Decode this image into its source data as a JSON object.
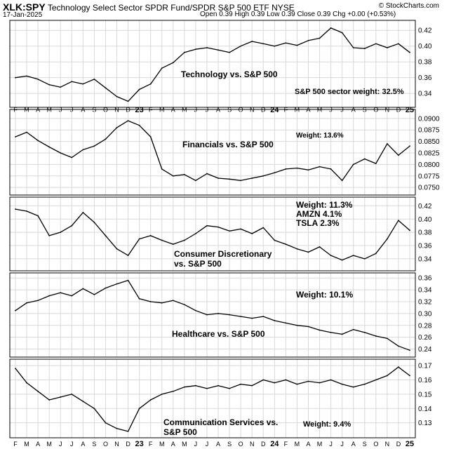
{
  "header": {
    "symbol": "XLK:SPY",
    "title": "Technology Select Sector SPDR Fund/SPDR S&P 500 ETF",
    "exchange": "NYSE",
    "date": "17-Jan-2025",
    "open_label": "Open",
    "open": "0.39",
    "high_label": "High",
    "high": "0.39",
    "low_label": "Low",
    "low": "0.39",
    "close_label": "Close",
    "close": "0.39",
    "chg_label": "Chg",
    "chg": "+0.00 (+0.53%)",
    "credit": "© StockCharts.com"
  },
  "colors": {
    "line": "#000000",
    "grid": "#d8d8d8",
    "frame": "#000000"
  },
  "chart_data": {
    "type": "line",
    "x": [
      "Feb 2022",
      "Mar 2022",
      "Apr 2022",
      "May 2022",
      "Jun 2022",
      "Jul 2022",
      "Aug 2022",
      "Sep 2022",
      "Oct 2022",
      "Nov 2022",
      "Dec 2022",
      "Jan 2023",
      "Feb 2023",
      "Mar 2023",
      "Apr 2023",
      "May 2023",
      "Jun 2023",
      "Jul 2023",
      "Aug 2023",
      "Sep 2023",
      "Oct 2023",
      "Nov 2023",
      "Dec 2023",
      "Jan 2024",
      "Feb 2024",
      "Mar 2024",
      "Apr 2024",
      "May 2024",
      "Jun 2024",
      "Jul 2024",
      "Aug 2024",
      "Sep 2024",
      "Oct 2024",
      "Nov 2024",
      "Dec 2024",
      "Jan 2025"
    ],
    "x_tick_labels": [
      "F",
      "M",
      "A",
      "M",
      "J",
      "J",
      "A",
      "S",
      "O",
      "N",
      "D",
      "23",
      "F",
      "M",
      "A",
      "M",
      "J",
      "J",
      "A",
      "S",
      "O",
      "N",
      "D",
      "24",
      "F",
      "M",
      "A",
      "M",
      "J",
      "J",
      "A",
      "S",
      "O",
      "N",
      "D",
      "25"
    ],
    "panels": [
      {
        "name": "technology",
        "label_lines": [
          "Technology vs. S&P 500"
        ],
        "note_lines": [
          "S&P 500 sector weight: 32.5%"
        ],
        "ylim": [
          0.325,
          0.43
        ],
        "y_ticks": [
          0.34,
          0.36,
          0.38,
          0.4,
          0.42
        ],
        "y_tick_labels": [
          "0.34",
          "0.36",
          "0.38",
          "0.40",
          "0.42"
        ],
        "values": [
          0.36,
          0.362,
          0.358,
          0.351,
          0.348,
          0.355,
          0.352,
          0.358,
          0.347,
          0.336,
          0.33,
          0.345,
          0.352,
          0.372,
          0.379,
          0.392,
          0.396,
          0.398,
          0.395,
          0.392,
          0.4,
          0.406,
          0.403,
          0.4,
          0.404,
          0.401,
          0.407,
          0.41,
          0.423,
          0.417,
          0.398,
          0.397,
          0.403,
          0.398,
          0.403,
          0.392
        ]
      },
      {
        "name": "financials",
        "label_lines": [
          "Financials vs. S&P 500"
        ],
        "note_lines": [
          "Weight: 13.6%"
        ],
        "ylim": [
          0.0738,
          0.0915
        ],
        "y_ticks": [
          0.075,
          0.0775,
          0.08,
          0.0825,
          0.085,
          0.0875,
          0.09
        ],
        "y_tick_labels": [
          "0.0750",
          "0.0775",
          "0.0800",
          "0.0825",
          "0.0850",
          "0.0875",
          "0.0900"
        ],
        "values": [
          0.086,
          0.087,
          0.0852,
          0.0838,
          0.0825,
          0.0815,
          0.0832,
          0.084,
          0.0855,
          0.088,
          0.0895,
          0.0885,
          0.086,
          0.079,
          0.0775,
          0.0778,
          0.0765,
          0.078,
          0.077,
          0.0768,
          0.0765,
          0.077,
          0.0775,
          0.0782,
          0.079,
          0.0792,
          0.0788,
          0.0795,
          0.079,
          0.0765,
          0.08,
          0.0812,
          0.0802,
          0.0845,
          0.082,
          0.084
        ]
      },
      {
        "name": "consumer-discretionary",
        "label_lines": [
          "Consumer Discretionary",
          "vs. S&P 500"
        ],
        "note_lines": [
          "Weight: 11.3%",
          "AMZN 4.1%",
          "TSLA 2.3%"
        ],
        "ylim": [
          0.325,
          0.43
        ],
        "y_ticks": [
          0.34,
          0.36,
          0.38,
          0.4,
          0.42
        ],
        "y_tick_labels": [
          "0.34",
          "0.36",
          "0.38",
          "0.40",
          "0.42"
        ],
        "values": [
          0.415,
          0.412,
          0.405,
          0.375,
          0.38,
          0.39,
          0.41,
          0.395,
          0.375,
          0.355,
          0.345,
          0.37,
          0.375,
          0.368,
          0.362,
          0.368,
          0.378,
          0.39,
          0.388,
          0.382,
          0.385,
          0.378,
          0.387,
          0.368,
          0.362,
          0.355,
          0.35,
          0.358,
          0.345,
          0.338,
          0.345,
          0.34,
          0.348,
          0.37,
          0.398,
          0.383
        ]
      },
      {
        "name": "healthcare",
        "label_lines": [
          "Healthcare vs. S&P 500"
        ],
        "note_lines": [
          "Weight: 10.1%"
        ],
        "ylim": [
          0.23,
          0.365
        ],
        "y_ticks": [
          0.24,
          0.26,
          0.28,
          0.3,
          0.32,
          0.34,
          0.36
        ],
        "y_tick_labels": [
          "0.24",
          "0.26",
          "0.28",
          "0.30",
          "0.32",
          "0.34",
          "0.36"
        ],
        "values": [
          0.305,
          0.318,
          0.322,
          0.33,
          0.335,
          0.33,
          0.342,
          0.332,
          0.343,
          0.35,
          0.356,
          0.325,
          0.32,
          0.318,
          0.322,
          0.315,
          0.305,
          0.298,
          0.3,
          0.298,
          0.295,
          0.292,
          0.295,
          0.288,
          0.284,
          0.28,
          0.278,
          0.272,
          0.268,
          0.265,
          0.273,
          0.268,
          0.262,
          0.258,
          0.245,
          0.238
        ]
      },
      {
        "name": "communication-services",
        "label_lines": [
          "Communication Services vs.",
          "S&P 500"
        ],
        "note_lines": [
          "Weight: 9.4%"
        ],
        "ylim": [
          0.121,
          0.173
        ],
        "y_ticks": [
          0.13,
          0.14,
          0.15,
          0.16,
          0.17
        ],
        "y_tick_labels": [
          "0.13",
          "0.14",
          "0.15",
          "0.16",
          "0.17"
        ],
        "values": [
          0.168,
          0.158,
          0.152,
          0.146,
          0.148,
          0.15,
          0.145,
          0.14,
          0.13,
          0.126,
          0.124,
          0.14,
          0.146,
          0.15,
          0.152,
          0.155,
          0.156,
          0.154,
          0.156,
          0.154,
          0.157,
          0.156,
          0.16,
          0.158,
          0.16,
          0.157,
          0.159,
          0.158,
          0.16,
          0.157,
          0.155,
          0.157,
          0.16,
          0.163,
          0.169,
          0.163
        ]
      }
    ]
  }
}
